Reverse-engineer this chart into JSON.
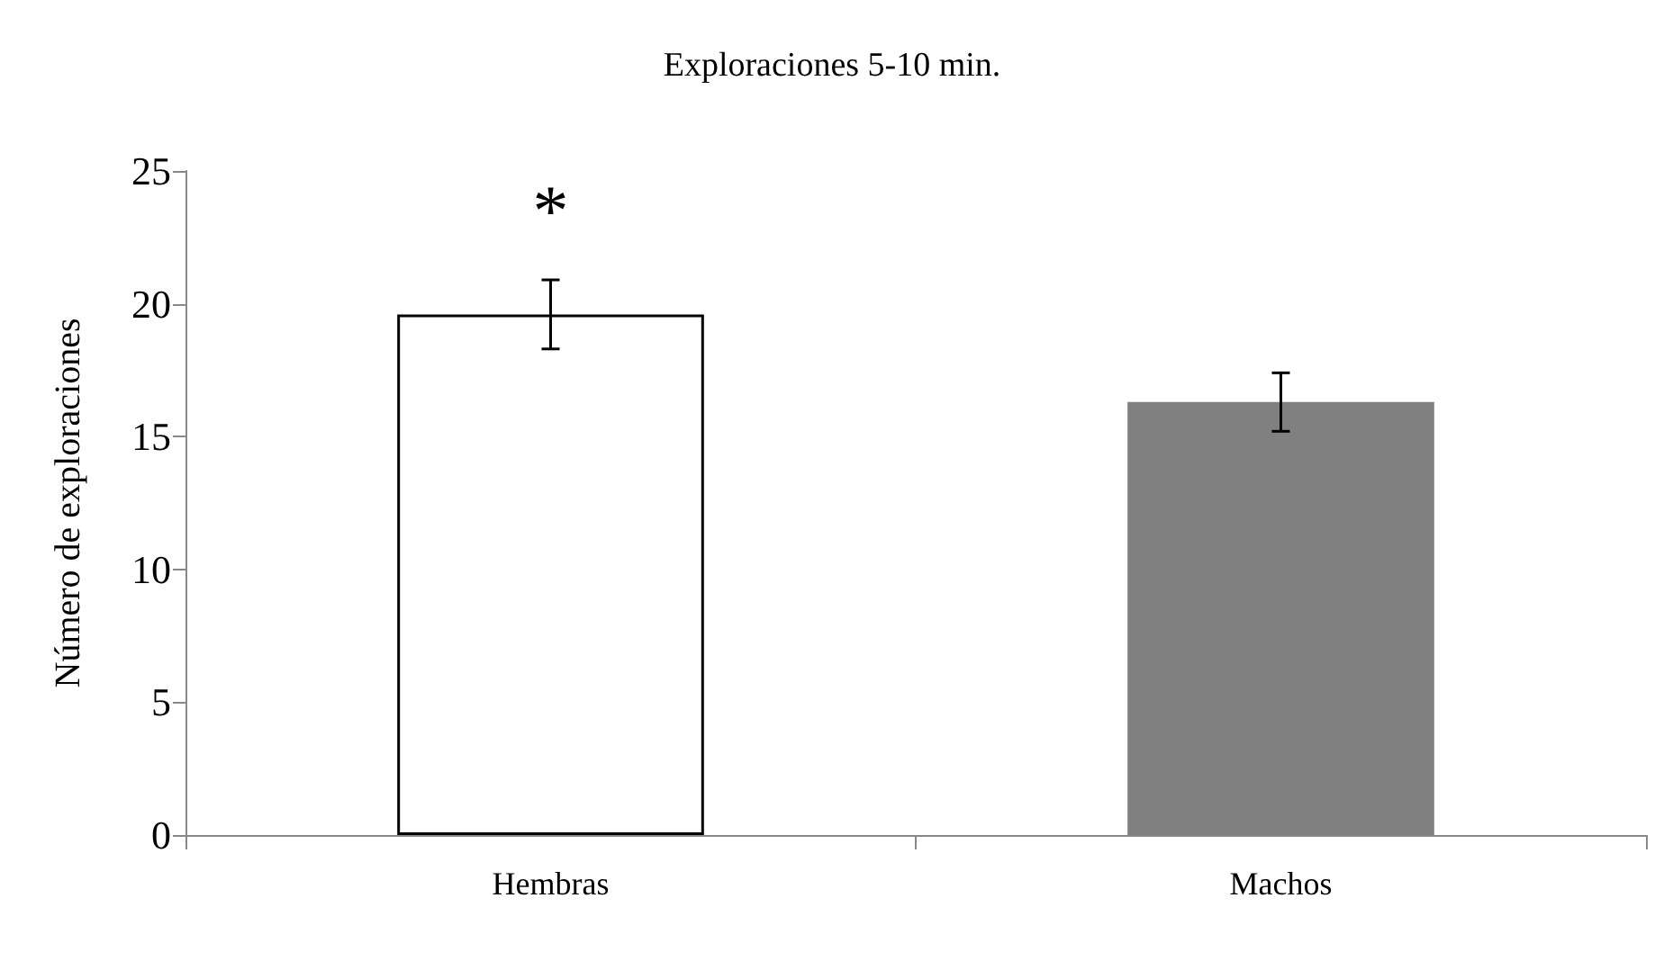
{
  "chart_data": {
    "type": "bar",
    "title": "Exploraciones 5-10 min.",
    "ylabel": "Número de exploraciones",
    "categories": [
      "Hembras",
      "Machos"
    ],
    "values": [
      19.6,
      16.3
    ],
    "errors": [
      1.3,
      1.1
    ],
    "colors": [
      "#ffffff",
      "#808080"
    ],
    "ylim": [
      0,
      25
    ],
    "yticks": [
      0,
      5,
      10,
      15,
      20,
      25
    ],
    "annotations": [
      "*"
    ]
  }
}
